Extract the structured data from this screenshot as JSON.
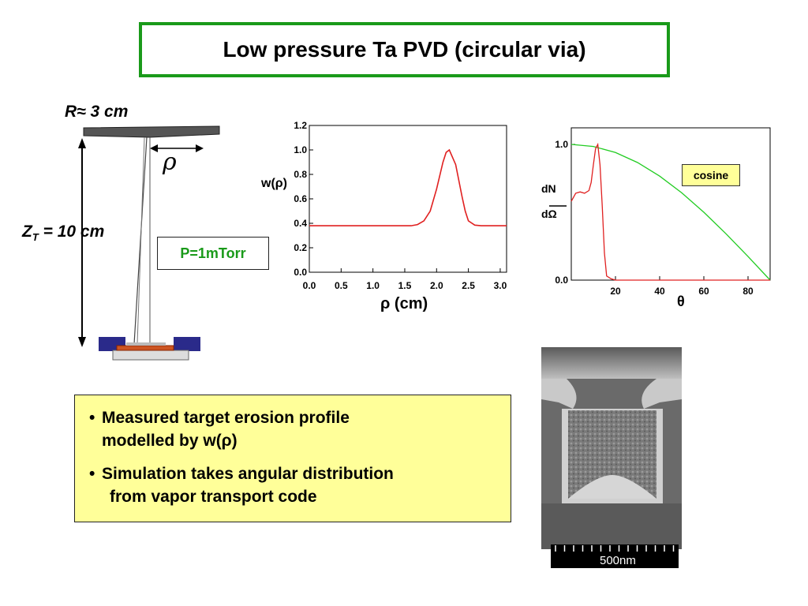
{
  "title": "Low pressure Ta PVD (circular via)",
  "schematic": {
    "radius_label": "R≈ 3 cm",
    "rho_label": "ρ",
    "height_label_main": "Z",
    "height_label_sub": "T",
    "height_label_rest": " = 10 cm",
    "pressure_label": "P=1mTorr"
  },
  "chart_data": [
    {
      "type": "line",
      "ylabel": "w(ρ)",
      "xlabel": "ρ (cm)",
      "xlim": [
        0,
        3.1
      ],
      "ylim": [
        0,
        1.2
      ],
      "xticks": [
        "0.0",
        "0.5",
        "1.0",
        "1.5",
        "2.0",
        "2.5",
        "3.0"
      ],
      "yticks": [
        "0.0",
        "0.2",
        "0.4",
        "0.6",
        "0.8",
        "1.0",
        "1.2"
      ],
      "series": [
        {
          "color": "#e02020",
          "x": [
            0,
            0.5,
            1.0,
            1.5,
            1.6,
            1.7,
            1.8,
            1.9,
            2.0,
            2.1,
            2.15,
            2.2,
            2.3,
            2.4,
            2.45,
            2.5,
            2.6,
            2.7,
            3.0,
            3.1
          ],
          "y": [
            0.38,
            0.38,
            0.38,
            0.38,
            0.38,
            0.39,
            0.42,
            0.5,
            0.68,
            0.9,
            0.98,
            1.0,
            0.88,
            0.62,
            0.5,
            0.42,
            0.385,
            0.38,
            0.38,
            0.38
          ]
        }
      ]
    },
    {
      "type": "line",
      "ylabel_top": "dN",
      "ylabel_bottom": "dΩ",
      "xlabel": "θ",
      "xlim": [
        0,
        90
      ],
      "ylim": [
        0,
        1.0
      ],
      "xticks": [
        "20",
        "40",
        "60",
        "80"
      ],
      "yticks": [
        "0.0",
        "1.0"
      ],
      "legend": "cosine",
      "series": [
        {
          "name": "cosine",
          "color": "#22cc22",
          "x": [
            0,
            10,
            20,
            30,
            40,
            50,
            60,
            70,
            80,
            90
          ],
          "y": [
            1.0,
            0.985,
            0.94,
            0.866,
            0.766,
            0.643,
            0.5,
            0.342,
            0.174,
            0.0
          ]
        },
        {
          "color": "#e02020",
          "x": [
            0,
            2,
            4,
            6,
            8,
            9,
            10,
            11,
            12,
            13,
            14,
            15,
            16,
            18,
            20,
            30,
            50,
            70,
            90
          ],
          "y": [
            0.58,
            0.64,
            0.65,
            0.64,
            0.66,
            0.72,
            0.85,
            0.97,
            1.0,
            0.85,
            0.55,
            0.2,
            0.03,
            0.01,
            0.0,
            0.0,
            0.0,
            0.0,
            0.0
          ]
        }
      ]
    }
  ],
  "bullets": [
    {
      "line1": "Measured target erosion profile",
      "line2": "modelled by w(ρ)"
    },
    {
      "line1": "Simulation takes angular distribution",
      "line2": "from vapor transport code"
    }
  ],
  "micrograph": {
    "scale_label": "500nm"
  }
}
